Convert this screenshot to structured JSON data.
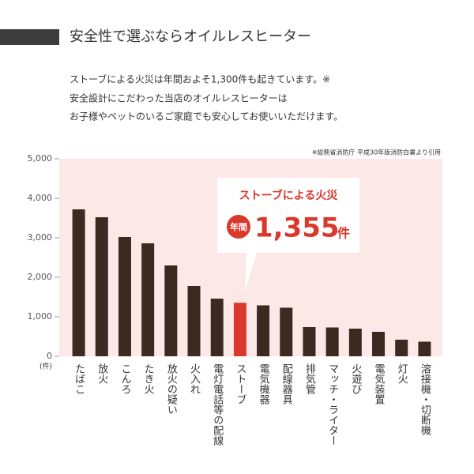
{
  "header": {
    "title": "安全性で選ぶならオイルレスヒーター",
    "lines": [
      "ストーブによる火災は年間およそ1,300件も起きています。※",
      "安全設計にこだわった当店のオイルレスヒーターは",
      "お子様やペットのいるご家庭でも安心してお使いいただけます。"
    ]
  },
  "chart_data": {
    "type": "bar",
    "source": "※総務省消防庁 平成30年版消防白書より引用",
    "y_unit": "(件)",
    "categories": [
      "たばこ",
      "放火",
      "こんろ",
      "たき火",
      "放火の疑い",
      "火入れ",
      "電灯電話等の配線",
      "ストーブ",
      "電気機器",
      "配線器具",
      "排気管",
      "マッチ・ライター",
      "火遊び",
      "電気装置",
      "灯火",
      "溶接機・切断機"
    ],
    "values": [
      3720,
      3520,
      3020,
      2860,
      2300,
      1780,
      1460,
      1355,
      1290,
      1230,
      740,
      730,
      700,
      620,
      420,
      370
    ],
    "colors": [
      "#3a2a20",
      "#3a2a20",
      "#3a2a20",
      "#3a2a20",
      "#3a2a20",
      "#3a2a20",
      "#3a2a20",
      "#d9382a",
      "#3a2a20",
      "#3a2a20",
      "#3a2a20",
      "#3a2a20",
      "#3a2a20",
      "#3a2a20",
      "#3a2a20",
      "#3a2a20"
    ],
    "ylim": [
      0,
      5000
    ],
    "yticks": [
      0,
      {
        "value": 1000,
        "label": "1,000"
      },
      {
        "value": 2000,
        "label": "2,000"
      },
      {
        "value": 3000,
        "label": "3,000"
      },
      {
        "value": 4000,
        "label": "4,000"
      },
      {
        "value": 5000,
        "label": "5,000"
      }
    ],
    "callout": {
      "title": "ストーブによる火災",
      "prefix": "年間",
      "value": "1,355",
      "unit": "件"
    }
  }
}
